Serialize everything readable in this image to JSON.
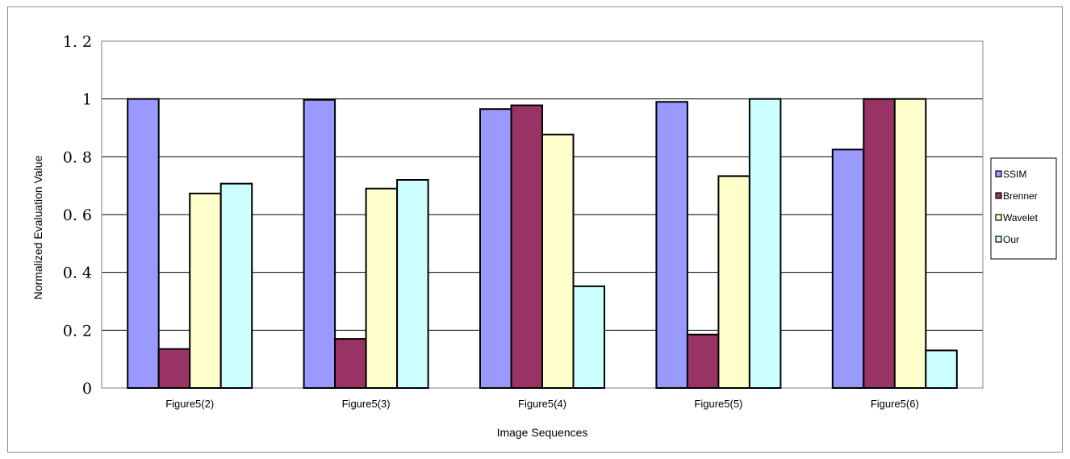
{
  "chart_data": {
    "type": "bar",
    "categories": [
      "Figure5(2)",
      "Figure5(3)",
      "Figure5(4)",
      "Figure5(5)",
      "Figure5(6)"
    ],
    "series": [
      {
        "name": "SSIM",
        "color": "#9999ff",
        "values": [
          1.0,
          0.997,
          0.965,
          0.99,
          0.825
        ]
      },
      {
        "name": "Brenner",
        "color": "#993366",
        "values": [
          0.135,
          0.17,
          0.978,
          0.185,
          1.0
        ]
      },
      {
        "name": "Wavelet",
        "color": "#ffffcc",
        "values": [
          0.673,
          0.69,
          0.877,
          0.733,
          1.0
        ]
      },
      {
        "name": "Our",
        "color": "#ccffff",
        "values": [
          0.707,
          0.72,
          0.352,
          1.0,
          0.13
        ]
      }
    ],
    "yticks": [
      "0",
      "0.2",
      "0.4",
      "0.6",
      "0.8",
      "1",
      "1.2"
    ],
    "ylim": [
      0,
      1.2
    ],
    "xlabel": "Image Sequences",
    "ylabel": "Normalized Evaluation Value",
    "grid": true,
    "legend_position": "right"
  }
}
